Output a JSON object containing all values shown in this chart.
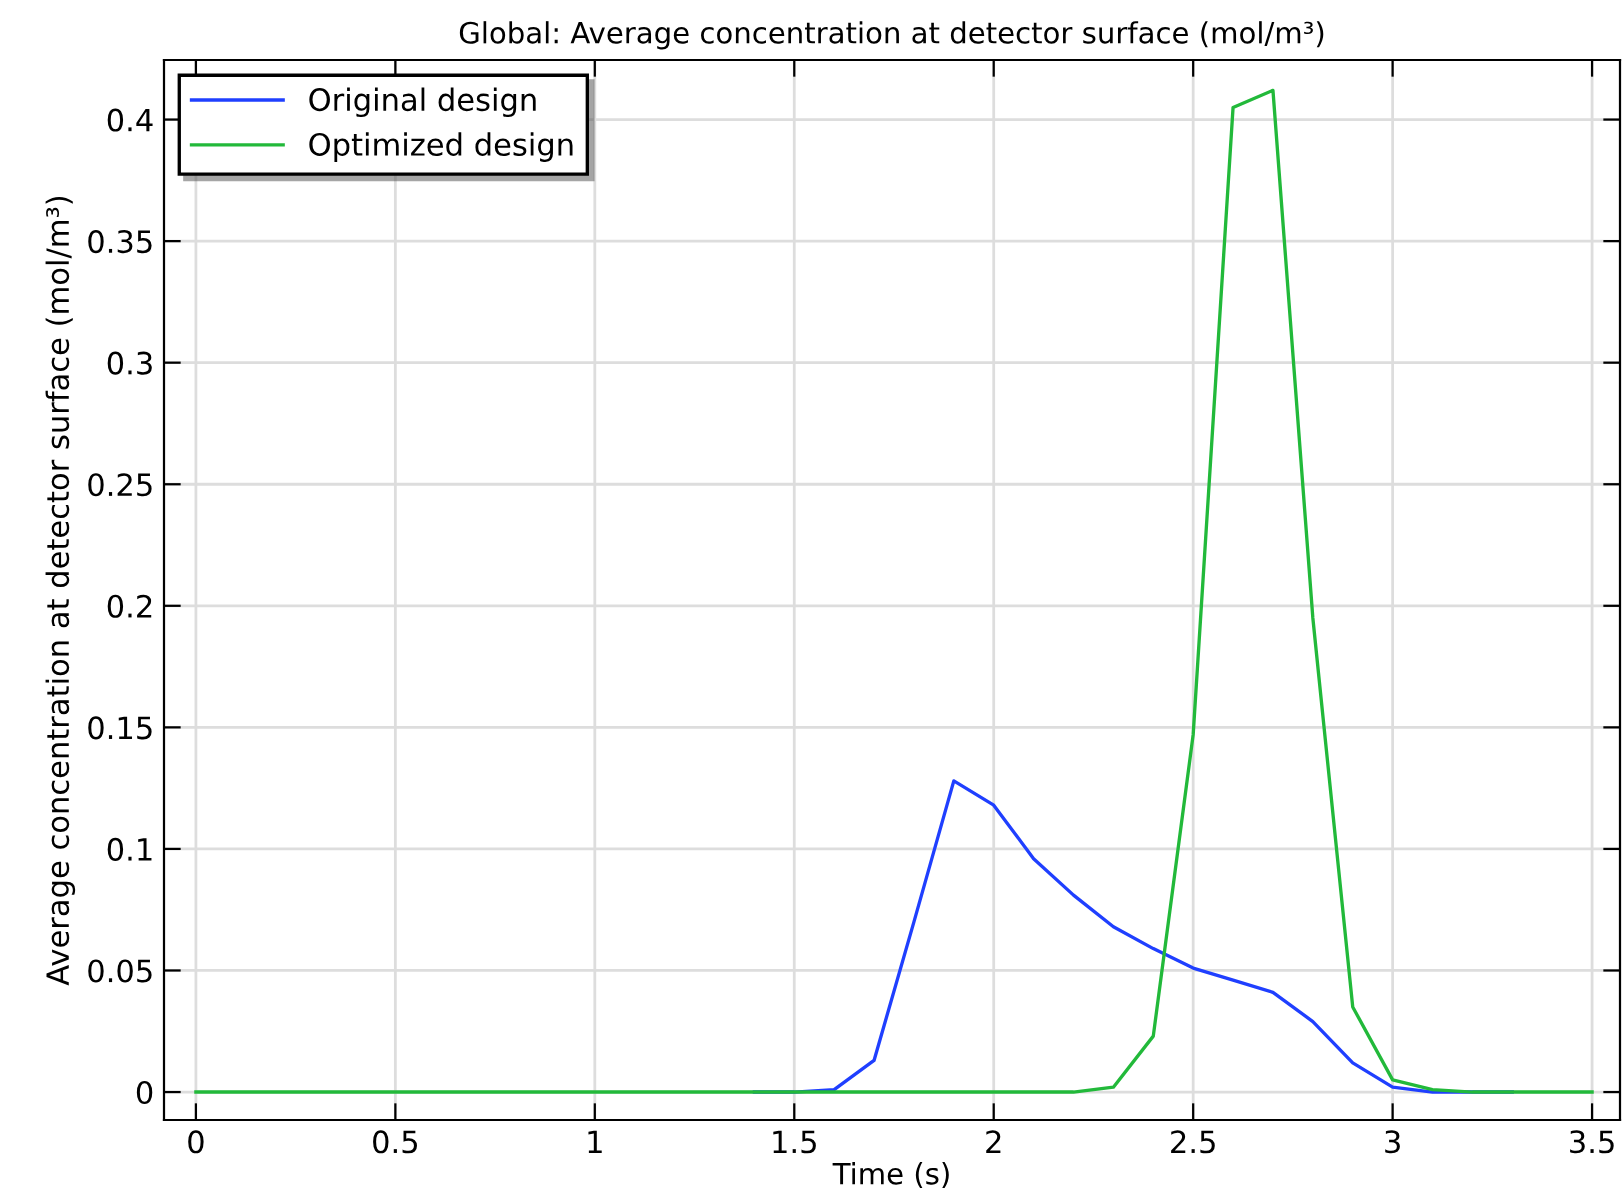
{
  "chart_data": {
    "type": "line",
    "title": "Global: Average concentration at detector surface (mol/m³)",
    "xlabel": "Time (s)",
    "ylabel": "Average concentration at detector surface (mol/m³)",
    "x": [
      0,
      0.1,
      0.2,
      0.3,
      0.4,
      0.5,
      0.6,
      0.7,
      0.8,
      0.9,
      1,
      1.1,
      1.2,
      1.3,
      1.4,
      1.5,
      1.6,
      1.7,
      1.8,
      1.9,
      2,
      2.1,
      2.2,
      2.3,
      2.4,
      2.5,
      2.6,
      2.7,
      2.8,
      2.9,
      3,
      3.1,
      3.2,
      3.3,
      3.4,
      3.5
    ],
    "series": [
      {
        "name": "Original design",
        "color": "#1f3fff",
        "values": [
          null,
          null,
          null,
          null,
          null,
          null,
          null,
          null,
          null,
          null,
          null,
          null,
          null,
          null,
          0,
          0,
          0.001,
          0.013,
          0.07,
          0.128,
          0.118,
          0.096,
          0.081,
          0.068,
          0.059,
          0.051,
          0.046,
          0.041,
          0.029,
          0.012,
          0.002,
          0,
          0,
          0,
          null,
          null
        ]
      },
      {
        "name": "Optimized design",
        "color": "#22b93a",
        "values": [
          0,
          0,
          0,
          0,
          0,
          0,
          0,
          0,
          0,
          0,
          0,
          0,
          0,
          0,
          0,
          0,
          0,
          0,
          0,
          0,
          0,
          0,
          0,
          0.002,
          0.023,
          0.147,
          0.405,
          0.412,
          0.195,
          0.035,
          0.005,
          0.001,
          0,
          0,
          0,
          0
        ]
      }
    ],
    "xlim": [
      -0.08,
      3.57
    ],
    "ylim": [
      -0.0115,
      0.4245
    ],
    "xticks": [
      0,
      0.5,
      1,
      1.5,
      2,
      2.5,
      3,
      3.5
    ],
    "yticks": [
      0,
      0.05,
      0.1,
      0.15,
      0.2,
      0.25,
      0.3,
      0.35,
      0.4
    ],
    "grid": true,
    "legend": "top left",
    "marker": "none",
    "line_style": "solid"
  }
}
